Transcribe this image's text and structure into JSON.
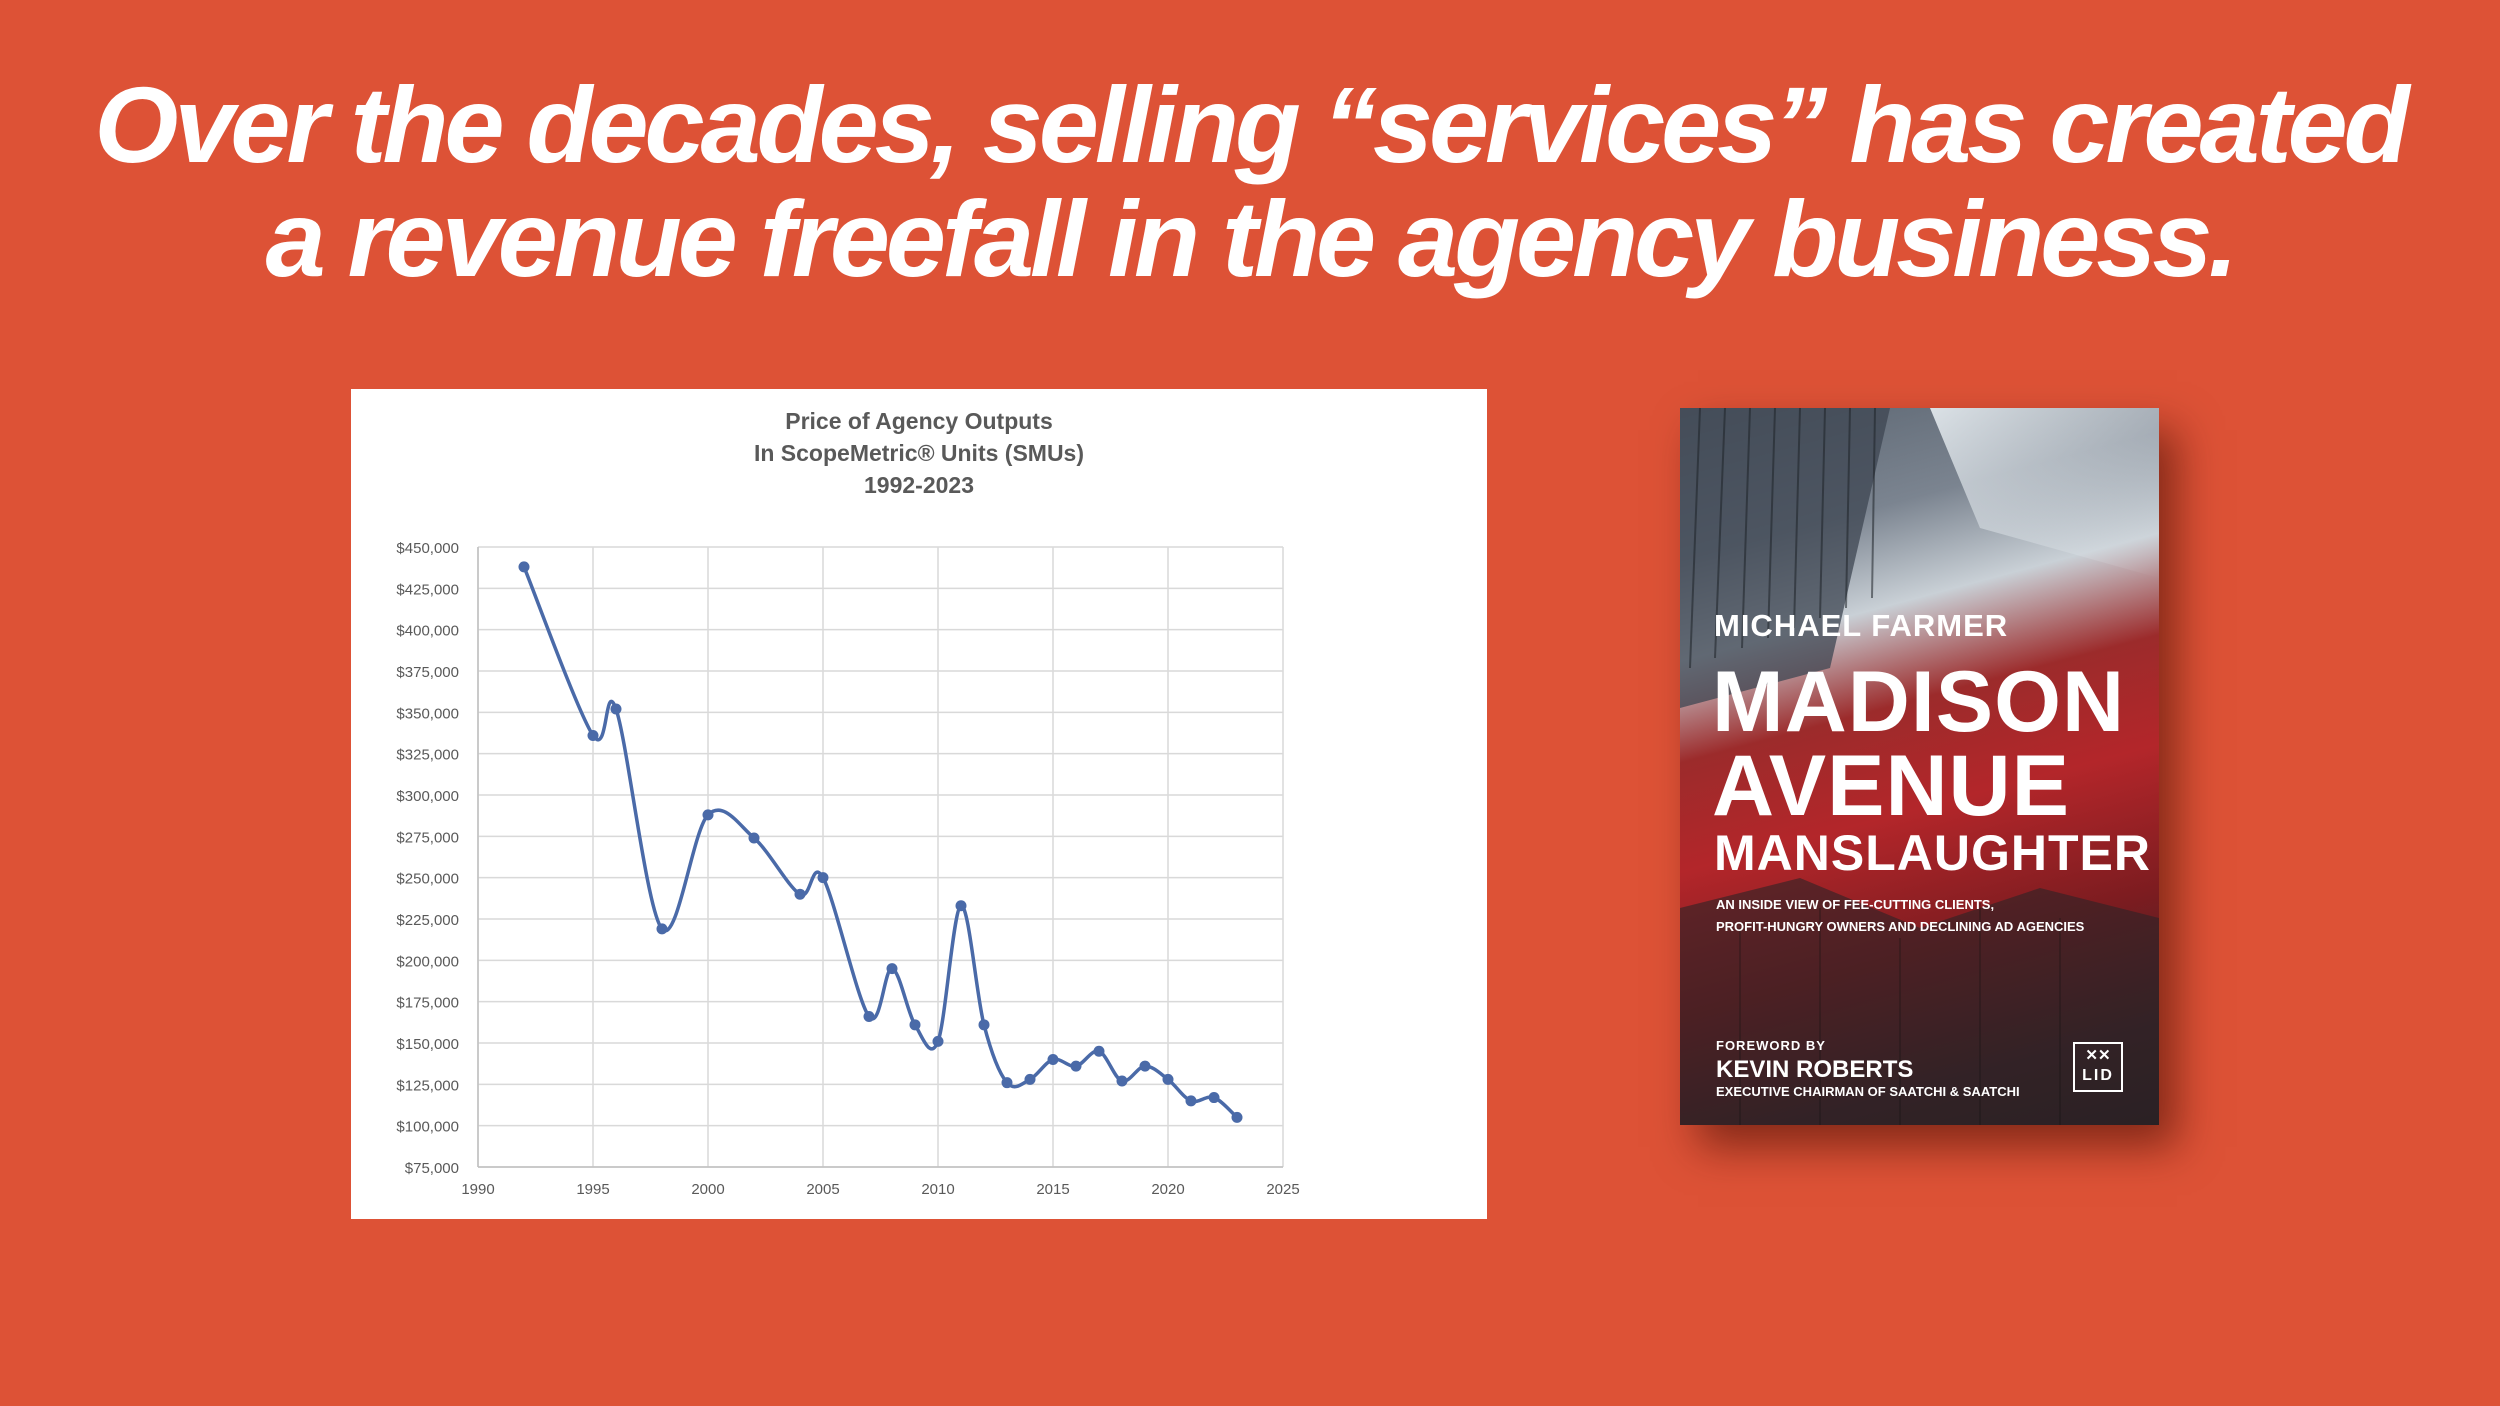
{
  "headline": {
    "line1": "Over the decades, selling “services” has created",
    "line2": "a revenue freefall in the agency business."
  },
  "colors": {
    "background": "#DD5236",
    "line": "#4A6AA8",
    "grid": "#D9D9D9",
    "axis_text": "#595959"
  },
  "chart_data": {
    "type": "line",
    "title": [
      "Price of Agency Outputs",
      "In ScopeMetric® Units (SMUs)",
      "1992-2023"
    ],
    "xlabel": "",
    "ylabel": "",
    "xlim": [
      1990,
      2025
    ],
    "ylim": [
      75000,
      450000
    ],
    "x_ticks": [
      1990,
      1995,
      2000,
      2005,
      2010,
      2015,
      2020,
      2025
    ],
    "x_tick_labels": [
      "1990",
      "1995",
      "2000",
      "2005",
      "2010",
      "2015",
      "2020",
      "2025"
    ],
    "y_ticks": [
      75000,
      100000,
      125000,
      150000,
      175000,
      200000,
      225000,
      250000,
      275000,
      300000,
      325000,
      350000,
      375000,
      400000,
      425000,
      450000
    ],
    "y_tick_labels": [
      "$75,000",
      "$100,000",
      "$125,000",
      "$150,000",
      "$175,000",
      "$200,000",
      "$225,000",
      "$250,000",
      "$275,000",
      "$300,000",
      "$325,000",
      "$350,000",
      "$375,000",
      "$400,000",
      "$425,000",
      "$450,000"
    ],
    "grid": true,
    "legend": "none",
    "smooth": true,
    "series": [
      {
        "x": [
          1992,
          1995,
          1996,
          1998,
          2000,
          2002,
          2004,
          2005,
          2007,
          2008,
          2009,
          2010,
          2011,
          2012,
          2013,
          2014,
          2015,
          2016,
          2017,
          2018,
          2019,
          2020,
          2021,
          2022,
          2023
        ],
        "y": [
          438000,
          336000,
          352000,
          219000,
          288000,
          274000,
          240000,
          250000,
          166000,
          195000,
          161000,
          151000,
          233000,
          161000,
          126000,
          128000,
          140000,
          136000,
          145000,
          127000,
          136000,
          128000,
          115000,
          117000,
          105000
        ]
      }
    ]
  },
  "book": {
    "author": "MICHAEL FARMER",
    "title_line1": "MADISON",
    "title_line2": "AVENUE",
    "title_line3": "MANSLAUGHTER",
    "subtitle_line1": "AN INSIDE VIEW OF FEE-CUTTING CLIENTS,",
    "subtitle_line2": "PROFIT-HUNGRY OWNERS AND DECLINING AD AGENCIES",
    "foreword_label": "FOREWORD BY",
    "foreword_name": "KEVIN ROBERTS",
    "foreword_title": "EXECUTIVE CHAIRMAN OF SAATCHI & SAATCHI",
    "publisher_logo": "LID",
    "publisher_mark": "✕✕"
  }
}
